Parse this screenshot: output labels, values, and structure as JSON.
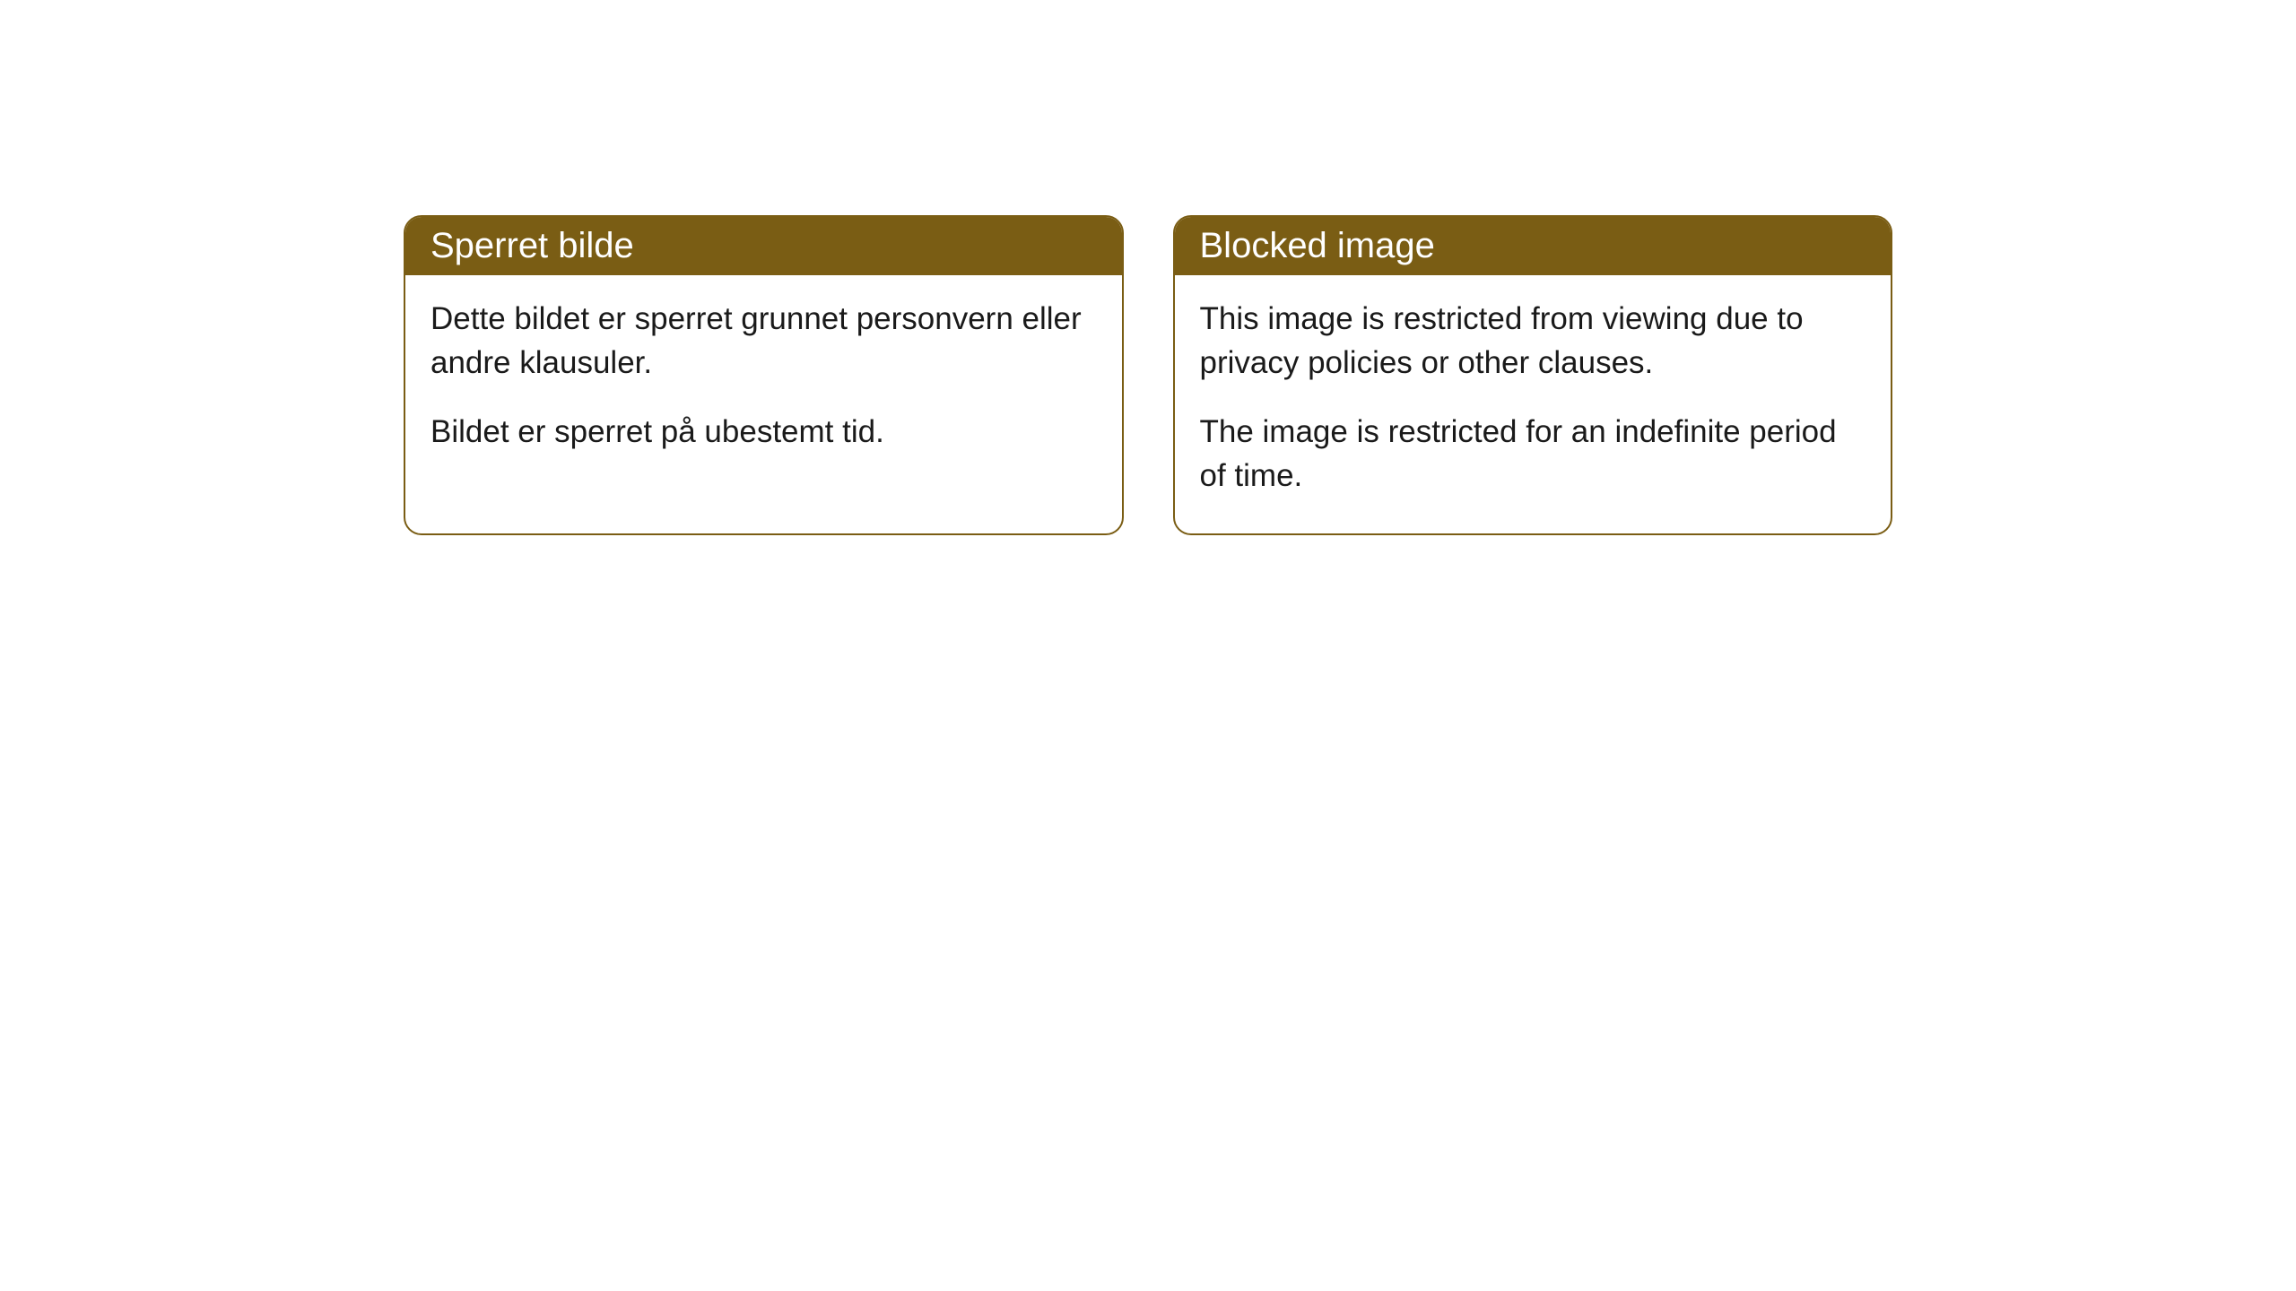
{
  "cards": [
    {
      "title": "Sperret bilde",
      "paragraph1": "Dette bildet er sperret grunnet personvern eller andre klausuler.",
      "paragraph2": "Bildet er sperret på ubestemt tid."
    },
    {
      "title": "Blocked image",
      "paragraph1": "This image is restricted from viewing due to privacy policies or other clauses.",
      "paragraph2": "The image is restricted for an indefinite period of time."
    }
  ],
  "styling": {
    "header_bg_color": "#7a5d14",
    "header_text_color": "#ffffff",
    "border_color": "#7a5d14",
    "body_text_color": "#1a1a1a",
    "background_color": "#ffffff",
    "border_radius": "20px",
    "title_fontsize": 40,
    "body_fontsize": 35
  }
}
